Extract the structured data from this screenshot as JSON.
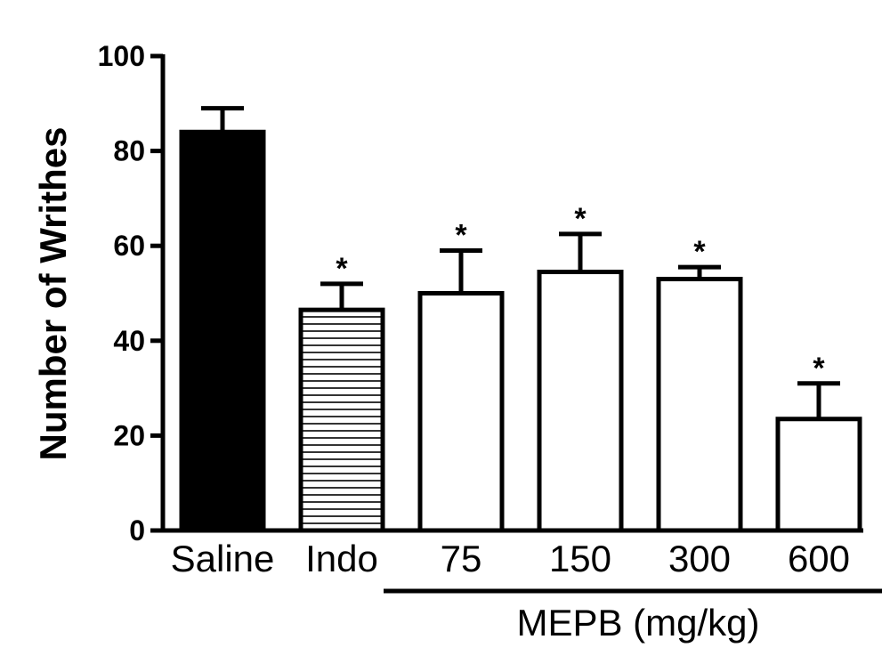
{
  "chart_data": {
    "type": "bar",
    "ylabel": "Number of Writhes",
    "ylim": [
      0,
      100
    ],
    "yticks": [
      0,
      20,
      40,
      60,
      80,
      100
    ],
    "categories": [
      "Saline",
      "Indo",
      "75",
      "150",
      "300",
      "600"
    ],
    "values": [
      84,
      46.5,
      50,
      54.5,
      53,
      23.5
    ],
    "errors": [
      5,
      5.5,
      9,
      8,
      2.5,
      7.5
    ],
    "significance": [
      "",
      "*",
      "*",
      "*",
      "*",
      "*"
    ],
    "fills": [
      "solid-black",
      "horizontal-stripes",
      "white",
      "white",
      "white",
      "white"
    ],
    "group": {
      "label": "MEPB (mg/kg)",
      "categories": [
        "75",
        "150",
        "300",
        "600"
      ]
    },
    "colors": {
      "bar_stroke": "#000000",
      "solid": "#000000",
      "open": "#ffffff"
    }
  }
}
